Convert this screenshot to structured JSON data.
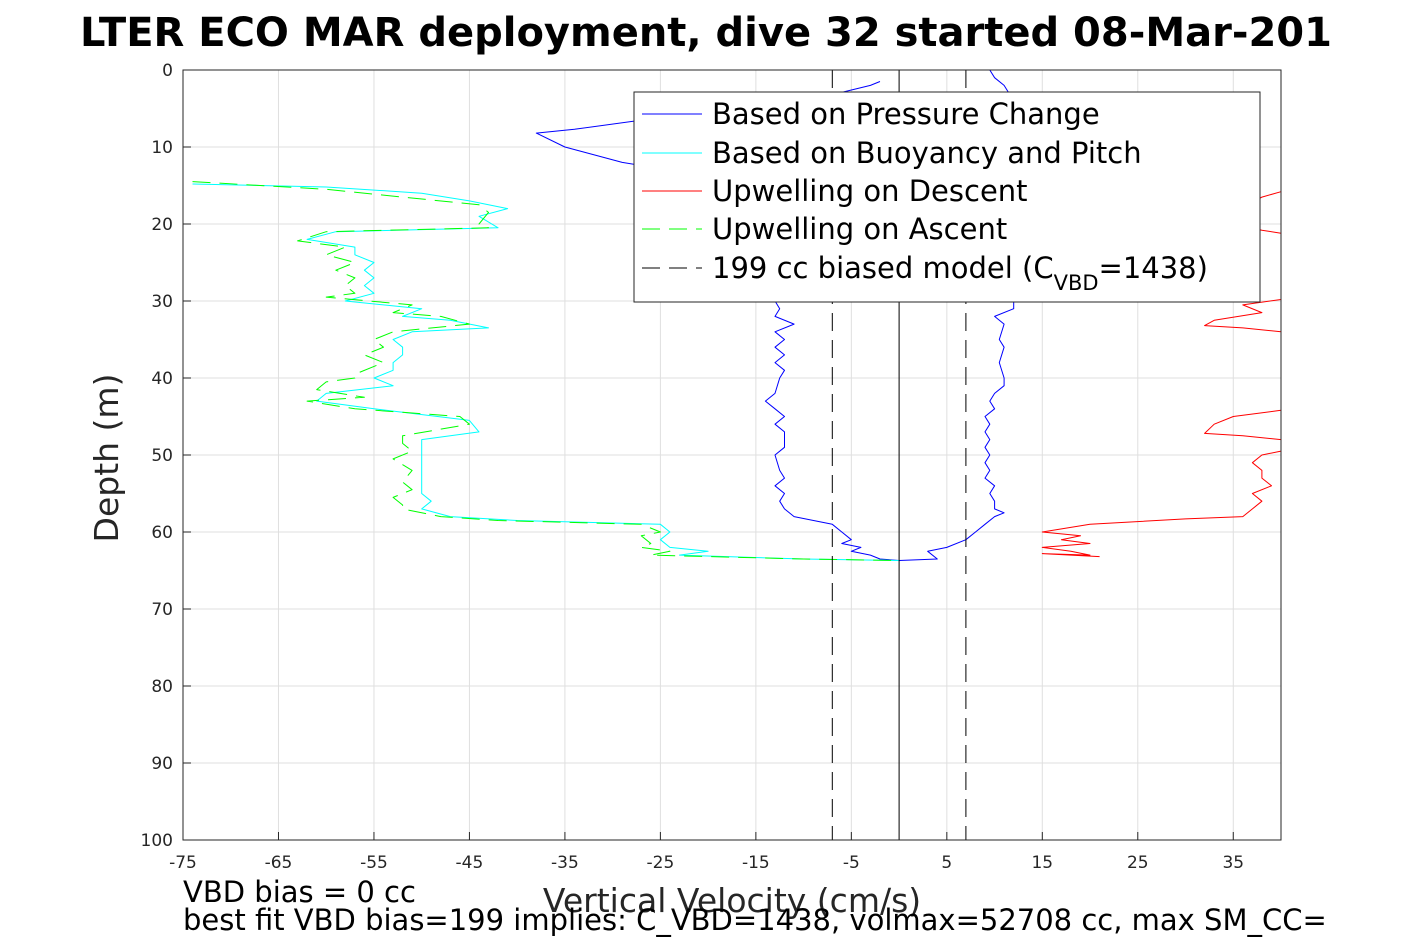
{
  "chart_data": {
    "type": "line",
    "title": "LTER ECO MAR deployment, dive 32 started 08-Mar-201",
    "xlabel": "Vertical Velocity (cm/s)",
    "ylabel": "Depth (m)",
    "xlim": [
      -75,
      40
    ],
    "ylim": [
      100,
      0
    ],
    "y_reversed": true,
    "grid": true,
    "legend_placement": "top-right",
    "x_ticks": [
      -75,
      -65,
      -55,
      -45,
      -35,
      -25,
      -15,
      -5,
      5,
      15,
      25,
      35
    ],
    "y_ticks": [
      0,
      10,
      20,
      30,
      40,
      50,
      60,
      70,
      80,
      90,
      100
    ],
    "legend": {
      "pressure": "Based on Pressure Change",
      "buoyancy": "Based on Buoyancy and Pitch",
      "up_descent": "Upwelling on Descent",
      "up_ascent": "Upwelling on Ascent",
      "model_main": "199 cc biased model (C",
      "model_sub": "VBD",
      "model_end": "=1438)"
    },
    "series": [
      {
        "key": "pressure_descent",
        "color": "#0000ff",
        "dash": "",
        "points": [
          [
            -2,
            1.5
          ],
          [
            -3,
            2
          ],
          [
            -8,
            3.5
          ],
          [
            -18,
            5
          ],
          [
            -27,
            6.5
          ],
          [
            -34,
            7.7
          ],
          [
            -38,
            8.2
          ],
          [
            -35,
            10
          ],
          [
            -29,
            12
          ],
          [
            -24,
            13
          ],
          [
            -20,
            14
          ],
          [
            -17,
            15
          ],
          [
            -15,
            16
          ],
          [
            -13,
            18
          ],
          [
            -12,
            20
          ],
          [
            -11.5,
            22
          ],
          [
            -12,
            24
          ],
          [
            -12.5,
            26
          ],
          [
            -13,
            28
          ],
          [
            -13,
            30
          ],
          [
            -12.5,
            31
          ],
          [
            -13,
            32
          ],
          [
            -11,
            33
          ],
          [
            -13,
            34
          ],
          [
            -12,
            35
          ],
          [
            -13,
            36
          ],
          [
            -12,
            37
          ],
          [
            -13,
            38
          ],
          [
            -12,
            39
          ],
          [
            -12.5,
            40
          ],
          [
            -13,
            42
          ],
          [
            -14,
            43
          ],
          [
            -13,
            44
          ],
          [
            -12,
            45
          ],
          [
            -13,
            46
          ],
          [
            -12,
            47
          ],
          [
            -12,
            48
          ],
          [
            -12,
            49
          ],
          [
            -13,
            50
          ],
          [
            -12.5,
            52
          ],
          [
            -12,
            53
          ],
          [
            -13,
            54
          ],
          [
            -12,
            55
          ],
          [
            -12.5,
            56
          ],
          [
            -12,
            57
          ],
          [
            -11,
            58
          ],
          [
            -7,
            59
          ],
          [
            -6,
            60
          ],
          [
            -5,
            61
          ],
          [
            -6,
            61.5
          ],
          [
            -4,
            62
          ],
          [
            -5,
            62.5
          ],
          [
            -3,
            63
          ],
          [
            -2,
            63.5
          ],
          [
            0,
            63.7
          ]
        ]
      },
      {
        "key": "pressure_ascent",
        "color": "#0000ff",
        "dash": "",
        "points": [
          [
            0,
            63.7
          ],
          [
            4,
            63.5
          ],
          [
            3,
            62.5
          ],
          [
            5,
            62
          ],
          [
            7,
            61
          ],
          [
            8,
            60
          ],
          [
            9,
            59
          ],
          [
            10,
            58
          ],
          [
            11,
            57.5
          ],
          [
            10,
            57
          ],
          [
            10,
            56
          ],
          [
            9.5,
            55
          ],
          [
            10,
            54
          ],
          [
            9,
            53
          ],
          [
            9.5,
            52
          ],
          [
            9,
            51
          ],
          [
            9.5,
            50
          ],
          [
            9,
            49
          ],
          [
            9.5,
            48
          ],
          [
            9,
            47
          ],
          [
            9.5,
            46
          ],
          [
            9,
            45
          ],
          [
            10,
            44
          ],
          [
            9.5,
            43
          ],
          [
            10,
            42
          ],
          [
            11,
            41
          ],
          [
            11,
            40
          ],
          [
            10.5,
            38
          ],
          [
            11,
            36
          ],
          [
            10.5,
            35
          ],
          [
            11,
            33
          ],
          [
            10,
            32
          ],
          [
            12,
            31
          ],
          [
            12,
            30
          ],
          [
            11,
            28
          ],
          [
            11,
            25
          ],
          [
            11,
            22
          ],
          [
            11.5,
            20
          ],
          [
            11,
            18
          ],
          [
            11,
            15
          ],
          [
            11.5,
            12
          ],
          [
            11,
            8
          ],
          [
            12,
            4
          ],
          [
            11,
            2
          ],
          [
            10,
            1
          ],
          [
            9.5,
            0
          ]
        ]
      },
      {
        "key": "buoyancy",
        "color": "#00ffff",
        "dash": "",
        "points": [
          [
            -74,
            14.8
          ],
          [
            -60,
            15.2
          ],
          [
            -50,
            16
          ],
          [
            -45,
            17
          ],
          [
            -41,
            18
          ],
          [
            -44,
            19
          ],
          [
            -42,
            20.5
          ],
          [
            -59,
            21
          ],
          [
            -62,
            22
          ],
          [
            -57,
            23
          ],
          [
            -57,
            24
          ],
          [
            -55,
            25
          ],
          [
            -56,
            26
          ],
          [
            -55,
            27
          ],
          [
            -56,
            28
          ],
          [
            -55,
            29
          ],
          [
            -58,
            30
          ],
          [
            -50,
            31
          ],
          [
            -52,
            32
          ],
          [
            -47,
            32.5
          ],
          [
            -43,
            33.5
          ],
          [
            -51,
            34
          ],
          [
            -53,
            35
          ],
          [
            -52,
            36
          ],
          [
            -52,
            37
          ],
          [
            -53,
            38
          ],
          [
            -53,
            39
          ],
          [
            -55,
            40
          ],
          [
            -53,
            41
          ],
          [
            -60,
            42
          ],
          [
            -61,
            43
          ],
          [
            -55,
            44
          ],
          [
            -45,
            45.5
          ],
          [
            -44,
            47
          ],
          [
            -50,
            48
          ],
          [
            -50,
            49
          ],
          [
            -50,
            51
          ],
          [
            -50,
            53
          ],
          [
            -50,
            55
          ],
          [
            -49,
            56
          ],
          [
            -50,
            57
          ],
          [
            -47,
            58
          ],
          [
            -40,
            58.5
          ],
          [
            -25,
            59
          ],
          [
            -24,
            60
          ],
          [
            -25,
            61
          ],
          [
            -24,
            62
          ],
          [
            -20,
            62.5
          ],
          [
            -23,
            63
          ],
          [
            -10,
            63.5
          ],
          [
            0,
            63.7
          ]
        ]
      },
      {
        "key": "upwelling_ascent",
        "color": "#00ff00",
        "dash": "18,9",
        "points": [
          [
            -74,
            14.5
          ],
          [
            -60,
            15.5
          ],
          [
            -52,
            16.5
          ],
          [
            -44,
            17.5
          ],
          [
            -43,
            18.5
          ],
          [
            -44,
            20
          ],
          [
            -43,
            20.5
          ],
          [
            -60,
            21
          ],
          [
            -63,
            22.2
          ],
          [
            -58,
            23
          ],
          [
            -60,
            24
          ],
          [
            -57,
            25
          ],
          [
            -59,
            26
          ],
          [
            -57,
            27
          ],
          [
            -58,
            28
          ],
          [
            -57,
            29
          ],
          [
            -60,
            29.5
          ],
          [
            -51,
            30.5
          ],
          [
            -53,
            31.5
          ],
          [
            -48,
            32
          ],
          [
            -45,
            33
          ],
          [
            -53,
            34
          ],
          [
            -55,
            35
          ],
          [
            -54,
            36
          ],
          [
            -56,
            37
          ],
          [
            -54,
            38
          ],
          [
            -57,
            39.5
          ],
          [
            -57,
            40
          ],
          [
            -60,
            40.5
          ],
          [
            -61,
            41.5
          ],
          [
            -56,
            42.5
          ],
          [
            -62,
            43
          ],
          [
            -57,
            44
          ],
          [
            -46,
            45
          ],
          [
            -45,
            46
          ],
          [
            -52,
            47.5
          ],
          [
            -52,
            48.5
          ],
          [
            -51,
            49.5
          ],
          [
            -53,
            50.5
          ],
          [
            -51,
            52
          ],
          [
            -52,
            53.5
          ],
          [
            -51,
            54.5
          ],
          [
            -53,
            55.5
          ],
          [
            -52,
            56.5
          ],
          [
            -52,
            57
          ],
          [
            -48,
            58
          ],
          [
            -42,
            58.5
          ],
          [
            -27,
            59
          ],
          [
            -25,
            60
          ],
          [
            -27,
            60.5
          ],
          [
            -26,
            61.5
          ],
          [
            -27,
            62
          ],
          [
            -24,
            62.5
          ],
          [
            -26,
            63
          ],
          [
            -10,
            63.5
          ],
          [
            0,
            63.7
          ]
        ]
      },
      {
        "key": "upwelling_descent_top",
        "color": "#ff0000",
        "dash": "",
        "points": [
          [
            40,
            15.8
          ],
          [
            38,
            16.5
          ],
          [
            36,
            18
          ],
          [
            35,
            20
          ],
          [
            38,
            20.8
          ],
          [
            40,
            21.2
          ]
        ]
      },
      {
        "key": "upwelling_descent_mid",
        "color": "#ff0000",
        "dash": "",
        "points": [
          [
            40,
            29.8
          ],
          [
            36,
            30.5
          ],
          [
            38,
            31.5
          ],
          [
            33,
            32.5
          ],
          [
            32,
            33.2
          ],
          [
            36,
            33.5
          ],
          [
            40,
            34
          ]
        ]
      },
      {
        "key": "upwelling_descent_low",
        "color": "#ff0000",
        "dash": "",
        "points": [
          [
            40,
            44.2
          ],
          [
            35,
            45
          ],
          [
            33,
            46
          ],
          [
            32,
            47.2
          ],
          [
            36,
            47.5
          ],
          [
            40,
            48
          ]
        ]
      },
      {
        "key": "upwelling_descent_bottom",
        "color": "#ff0000",
        "dash": "",
        "points": [
          [
            40,
            49.5
          ],
          [
            38,
            50
          ],
          [
            37,
            51
          ],
          [
            38,
            52
          ],
          [
            38,
            53
          ],
          [
            39,
            54
          ],
          [
            37,
            55
          ],
          [
            38,
            56
          ],
          [
            37,
            57
          ],
          [
            36,
            58
          ],
          [
            30,
            58.3
          ],
          [
            20,
            59
          ],
          [
            15,
            60
          ],
          [
            19,
            60.5
          ],
          [
            17,
            61
          ],
          [
            20,
            61.5
          ],
          [
            15,
            62
          ],
          [
            18,
            62.5
          ],
          [
            20,
            63
          ],
          [
            15,
            62.8
          ],
          [
            21,
            63.2
          ]
        ]
      },
      {
        "key": "model_zero",
        "color": "#000000",
        "dash": "",
        "width": 1,
        "points": [
          [
            0,
            0
          ],
          [
            0,
            100
          ]
        ]
      },
      {
        "key": "model_left",
        "color": "#000000",
        "dash": "18,9",
        "width": 1,
        "points": [
          [
            -7,
            0
          ],
          [
            -7,
            100
          ]
        ]
      },
      {
        "key": "model_right",
        "color": "#000000",
        "dash": "18,9",
        "width": 1,
        "points": [
          [
            7,
            0
          ],
          [
            7,
            100
          ]
        ]
      }
    ],
    "annotations": {
      "bias_line": "VBD bias = 0 cc",
      "fit_line": "best fit VBD bias=199 implies: C_VBD=1438, volmax=52708 cc, max SM_CC="
    }
  }
}
